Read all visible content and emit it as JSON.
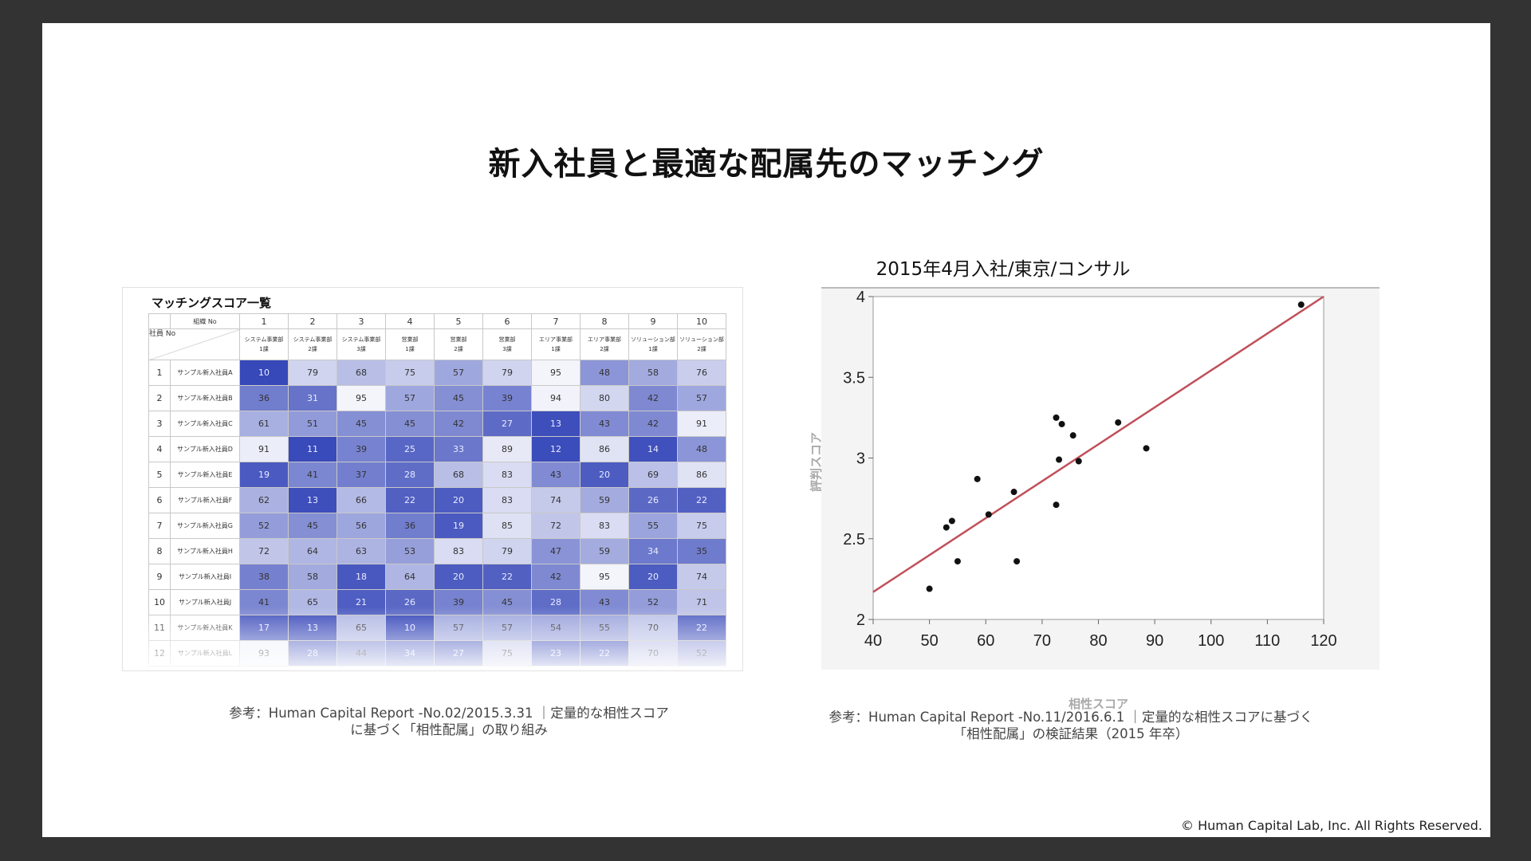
{
  "slide": {
    "title": "新入社員と最適な配属先のマッチング",
    "copyright": "© Human Capital Lab, Inc. All Rights Reserved."
  },
  "heatmap": {
    "title": "マッチングスコア一覧",
    "org_header": "組織 No",
    "emp_header": "社員 No",
    "columns": [
      {
        "no": "1",
        "dept": "システム事業部",
        "sec": "1課"
      },
      {
        "no": "2",
        "dept": "システム事業部",
        "sec": "2課"
      },
      {
        "no": "3",
        "dept": "システム事業部",
        "sec": "3課"
      },
      {
        "no": "4",
        "dept": "営業部",
        "sec": "1課"
      },
      {
        "no": "5",
        "dept": "営業部",
        "sec": "2課"
      },
      {
        "no": "6",
        "dept": "営業部",
        "sec": "3課"
      },
      {
        "no": "7",
        "dept": "エリア事業部",
        "sec": "1課"
      },
      {
        "no": "8",
        "dept": "エリア事業部",
        "sec": "2課"
      },
      {
        "no": "9",
        "dept": "ソリューション部",
        "sec": "1課"
      },
      {
        "no": "10",
        "dept": "ソリューション部",
        "sec": "2課"
      }
    ],
    "rows": [
      {
        "no": "1",
        "name": "サンプル新入社員A",
        "values": [
          10,
          79,
          68,
          75,
          57,
          79,
          95,
          48,
          58,
          76
        ]
      },
      {
        "no": "2",
        "name": "サンプル新入社員B",
        "values": [
          36,
          31,
          95,
          57,
          45,
          39,
          94,
          80,
          42,
          57
        ]
      },
      {
        "no": "3",
        "name": "サンプル新入社員C",
        "values": [
          61,
          51,
          45,
          45,
          42,
          27,
          13,
          43,
          42,
          91
        ]
      },
      {
        "no": "4",
        "name": "サンプル新入社員D",
        "values": [
          91,
          11,
          39,
          25,
          33,
          89,
          12,
          86,
          14,
          48
        ]
      },
      {
        "no": "5",
        "name": "サンプル新入社員E",
        "values": [
          19,
          41,
          37,
          28,
          68,
          83,
          43,
          20,
          69,
          86
        ]
      },
      {
        "no": "6",
        "name": "サンプル新入社員F",
        "values": [
          62,
          13,
          66,
          22,
          20,
          83,
          74,
          59,
          26,
          22
        ]
      },
      {
        "no": "7",
        "name": "サンプル新入社員G",
        "values": [
          52,
          45,
          56,
          36,
          19,
          85,
          72,
          83,
          55,
          75
        ]
      },
      {
        "no": "8",
        "name": "サンプル新入社員H",
        "values": [
          72,
          64,
          63,
          53,
          83,
          79,
          47,
          59,
          34,
          35
        ]
      },
      {
        "no": "9",
        "name": "サンプル新入社員I",
        "values": [
          38,
          58,
          18,
          64,
          20,
          22,
          42,
          95,
          20,
          74
        ]
      },
      {
        "no": "10",
        "name": "サンプル新入社員J",
        "values": [
          41,
          65,
          21,
          26,
          39,
          45,
          28,
          43,
          52,
          71
        ]
      },
      {
        "no": "11",
        "name": "サンプル新入社員K",
        "values": [
          17,
          13,
          65,
          10,
          57,
          57,
          54,
          55,
          70,
          22
        ]
      },
      {
        "no": "12",
        "name": "サンプル新入社員L",
        "values": [
          93,
          28,
          44,
          34,
          27,
          75,
          23,
          22,
          70,
          52
        ]
      }
    ],
    "caption_lines": [
      "参考：Human Capital Report -No.02/2015.3.31 ｜定量的な相性スコア",
      "に基づく「相性配属」の取り組み"
    ]
  },
  "chart_data": {
    "type": "scatter",
    "title": "2015年4月入社/東京/コンサル",
    "xlabel": "相性スコア",
    "ylabel": "評判スコア",
    "xlim": [
      40,
      120
    ],
    "ylim": [
      2,
      4
    ],
    "xticks": [
      "40",
      "50",
      "60",
      "70",
      "80",
      "90",
      "100",
      "110",
      "120"
    ],
    "yticks": [
      "2",
      "2.5",
      "3",
      "3.5",
      "4"
    ],
    "grid": false,
    "points": [
      {
        "x": 50,
        "y": 2.19
      },
      {
        "x": 53,
        "y": 2.57
      },
      {
        "x": 54,
        "y": 2.61
      },
      {
        "x": 55,
        "y": 2.36
      },
      {
        "x": 58.5,
        "y": 2.87
      },
      {
        "x": 60.5,
        "y": 2.65
      },
      {
        "x": 65,
        "y": 2.79
      },
      {
        "x": 65.5,
        "y": 2.36
      },
      {
        "x": 72.5,
        "y": 2.71
      },
      {
        "x": 72.5,
        "y": 3.25
      },
      {
        "x": 73,
        "y": 2.99
      },
      {
        "x": 73.5,
        "y": 3.21
      },
      {
        "x": 75.5,
        "y": 3.14
      },
      {
        "x": 76.5,
        "y": 2.98
      },
      {
        "x": 83.5,
        "y": 3.22
      },
      {
        "x": 88.5,
        "y": 3.06
      },
      {
        "x": 116,
        "y": 3.95
      }
    ],
    "fit_line": {
      "x": [
        40,
        120
      ],
      "y": [
        2.17,
        4.0
      ]
    },
    "colors": {
      "points": "#111111",
      "fit_line": "#c0505a",
      "background": "#f4f4f4"
    },
    "caption_lines": [
      "参考：Human Capital Report -No.11/2016.6.1 ｜定量的な相性スコアに基づく",
      "「相性配属」の検証結果（2015 年卒）"
    ]
  }
}
